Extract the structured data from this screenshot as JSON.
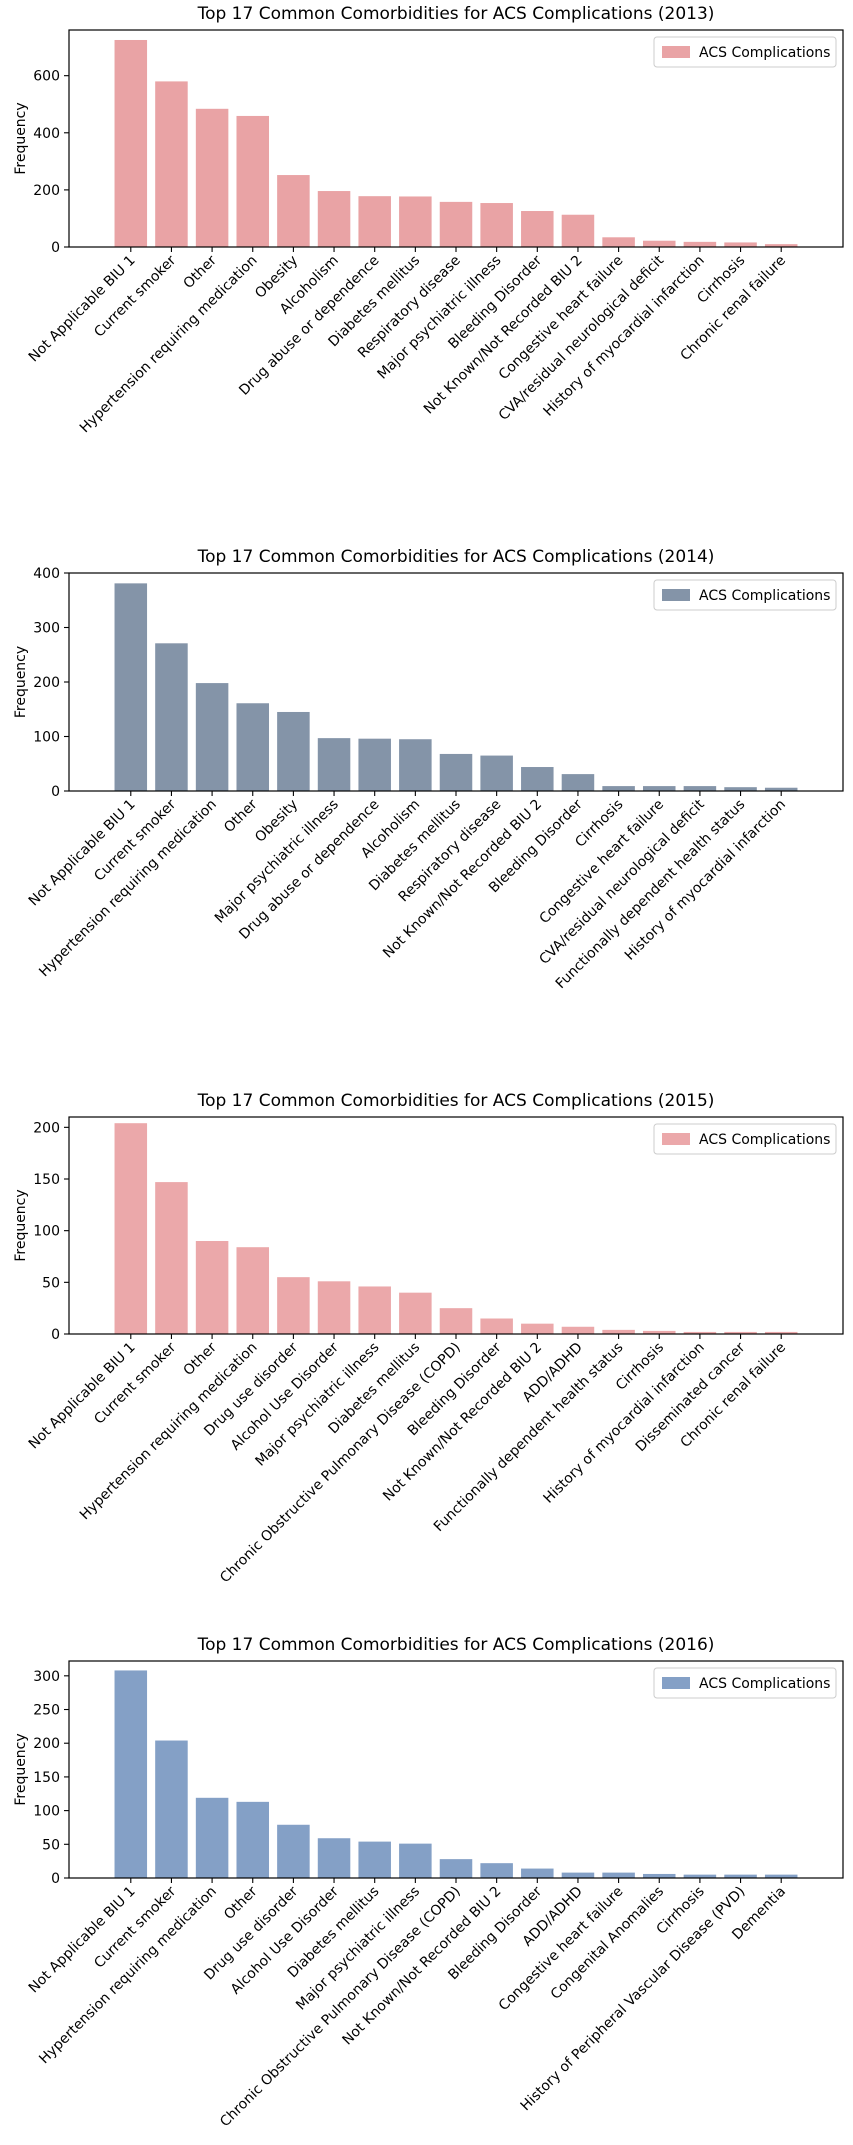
{
  "chart_data": [
    {
      "type": "bar",
      "title": "Top 17 Common Comorbidities for ACS Complications (2013)",
      "xlabel": "",
      "ylabel": "Frequency",
      "ylim": [
        0,
        760
      ],
      "yticks": [
        0,
        200,
        400,
        600
      ],
      "legend": "top-right",
      "grid": false,
      "color": "#e9a3a5",
      "series": [
        {
          "name": "ACS Complications",
          "values": [
            725,
            580,
            484,
            459,
            252,
            196,
            178,
            177,
            158,
            154,
            126,
            113,
            34,
            22,
            18,
            16,
            10
          ]
        }
      ],
      "categories": [
        "Not Applicable BIU 1",
        "Current smoker",
        "Other",
        "Hypertension requiring medication",
        "Obesity",
        "Alcoholism",
        "Drug abuse or dependence",
        "Diabetes mellitus",
        "Respiratory disease",
        "Major psychiatric illness",
        "Bleeding Disorder",
        "Not Known/Not Recorded BIU 2",
        "Congestive heart failure",
        "CVA/residual neurological deficit",
        "History of myocardial infarction",
        "Cirrhosis",
        "Chronic renal failure"
      ]
    },
    {
      "type": "bar",
      "title": "Top 17 Common Comorbidities for ACS Complications (2014)",
      "xlabel": "",
      "ylabel": "Frequency",
      "ylim": [
        0,
        400
      ],
      "yticks": [
        0,
        100,
        200,
        300,
        400
      ],
      "legend": "top-right",
      "grid": false,
      "color": "#8494a8",
      "series": [
        {
          "name": "ACS Complications",
          "values": [
            381,
            271,
            198,
            161,
            145,
            97,
            96,
            95,
            68,
            65,
            44,
            31,
            9,
            9,
            9,
            7,
            6
          ]
        }
      ],
      "categories": [
        "Not Applicable BIU 1",
        "Current smoker",
        "Hypertension requiring medication",
        "Other",
        "Obesity",
        "Major psychiatric illness",
        "Drug abuse or dependence",
        "Alcoholism",
        "Diabetes mellitus",
        "Respiratory disease",
        "Not Known/Not Recorded BIU 2",
        "Bleeding Disorder",
        "Cirrhosis",
        "Congestive heart failure",
        "CVA/residual neurological deficit",
        "Functionally dependent health status",
        "History of myocardial infarction"
      ]
    },
    {
      "type": "bar",
      "title": "Top 17 Common Comorbidities for ACS Complications (2015)",
      "xlabel": "",
      "ylabel": "Frequency",
      "ylim": [
        0,
        210
      ],
      "yticks": [
        0,
        50,
        100,
        150,
        200
      ],
      "legend": "top-right",
      "grid": false,
      "color": "#eba8aa",
      "series": [
        {
          "name": "ACS Complications",
          "values": [
            204,
            147,
            90,
            84,
            55,
            51,
            46,
            40,
            25,
            15,
            10,
            7,
            4,
            3,
            2,
            2,
            2
          ]
        }
      ],
      "categories": [
        "Not Applicable BIU 1",
        "Current smoker",
        "Other",
        "Hypertension requiring medication",
        "Drug use disorder",
        "Alcohol Use Disorder",
        "Major psychiatric illness",
        "Diabetes mellitus",
        "Chronic Obstructive Pulmonary Disease (COPD)",
        "Bleeding Disorder",
        "Not Known/Not Recorded BIU 2",
        "ADD/ADHD",
        "Functionally dependent health status",
        "Cirrhosis",
        "History of myocardial infarction",
        "Disseminated cancer",
        "Chronic renal failure"
      ]
    },
    {
      "type": "bar",
      "title": "Top 17 Common Comorbidities for ACS Complications (2016)",
      "xlabel": "",
      "ylabel": "Frequency",
      "ylim": [
        0,
        322
      ],
      "yticks": [
        0,
        50,
        100,
        150,
        200,
        250,
        300
      ],
      "legend": "top-right",
      "grid": false,
      "color": "#84a0c6",
      "series": [
        {
          "name": "ACS Complications",
          "values": [
            308,
            204,
            119,
            113,
            79,
            59,
            54,
            51,
            28,
            22,
            14,
            8,
            8,
            6,
            5,
            5,
            5
          ]
        }
      ],
      "categories": [
        "Not Applicable BIU 1",
        "Current smoker",
        "Hypertension requiring medication",
        "Other",
        "Drug use disorder",
        "Alcohol Use Disorder",
        "Diabetes mellitus",
        "Major psychiatric illness",
        "Chronic Obstructive Pulmonary Disease (COPD)",
        "Not Known/Not Recorded BIU 2",
        "Bleeding Disorder",
        "ADD/ADHD",
        "Congestive heart failure",
        "Congenital Anomalies",
        "Cirrhosis",
        "History of Peripheral Vascular Disease (PVD)",
        "Dementia"
      ]
    }
  ]
}
